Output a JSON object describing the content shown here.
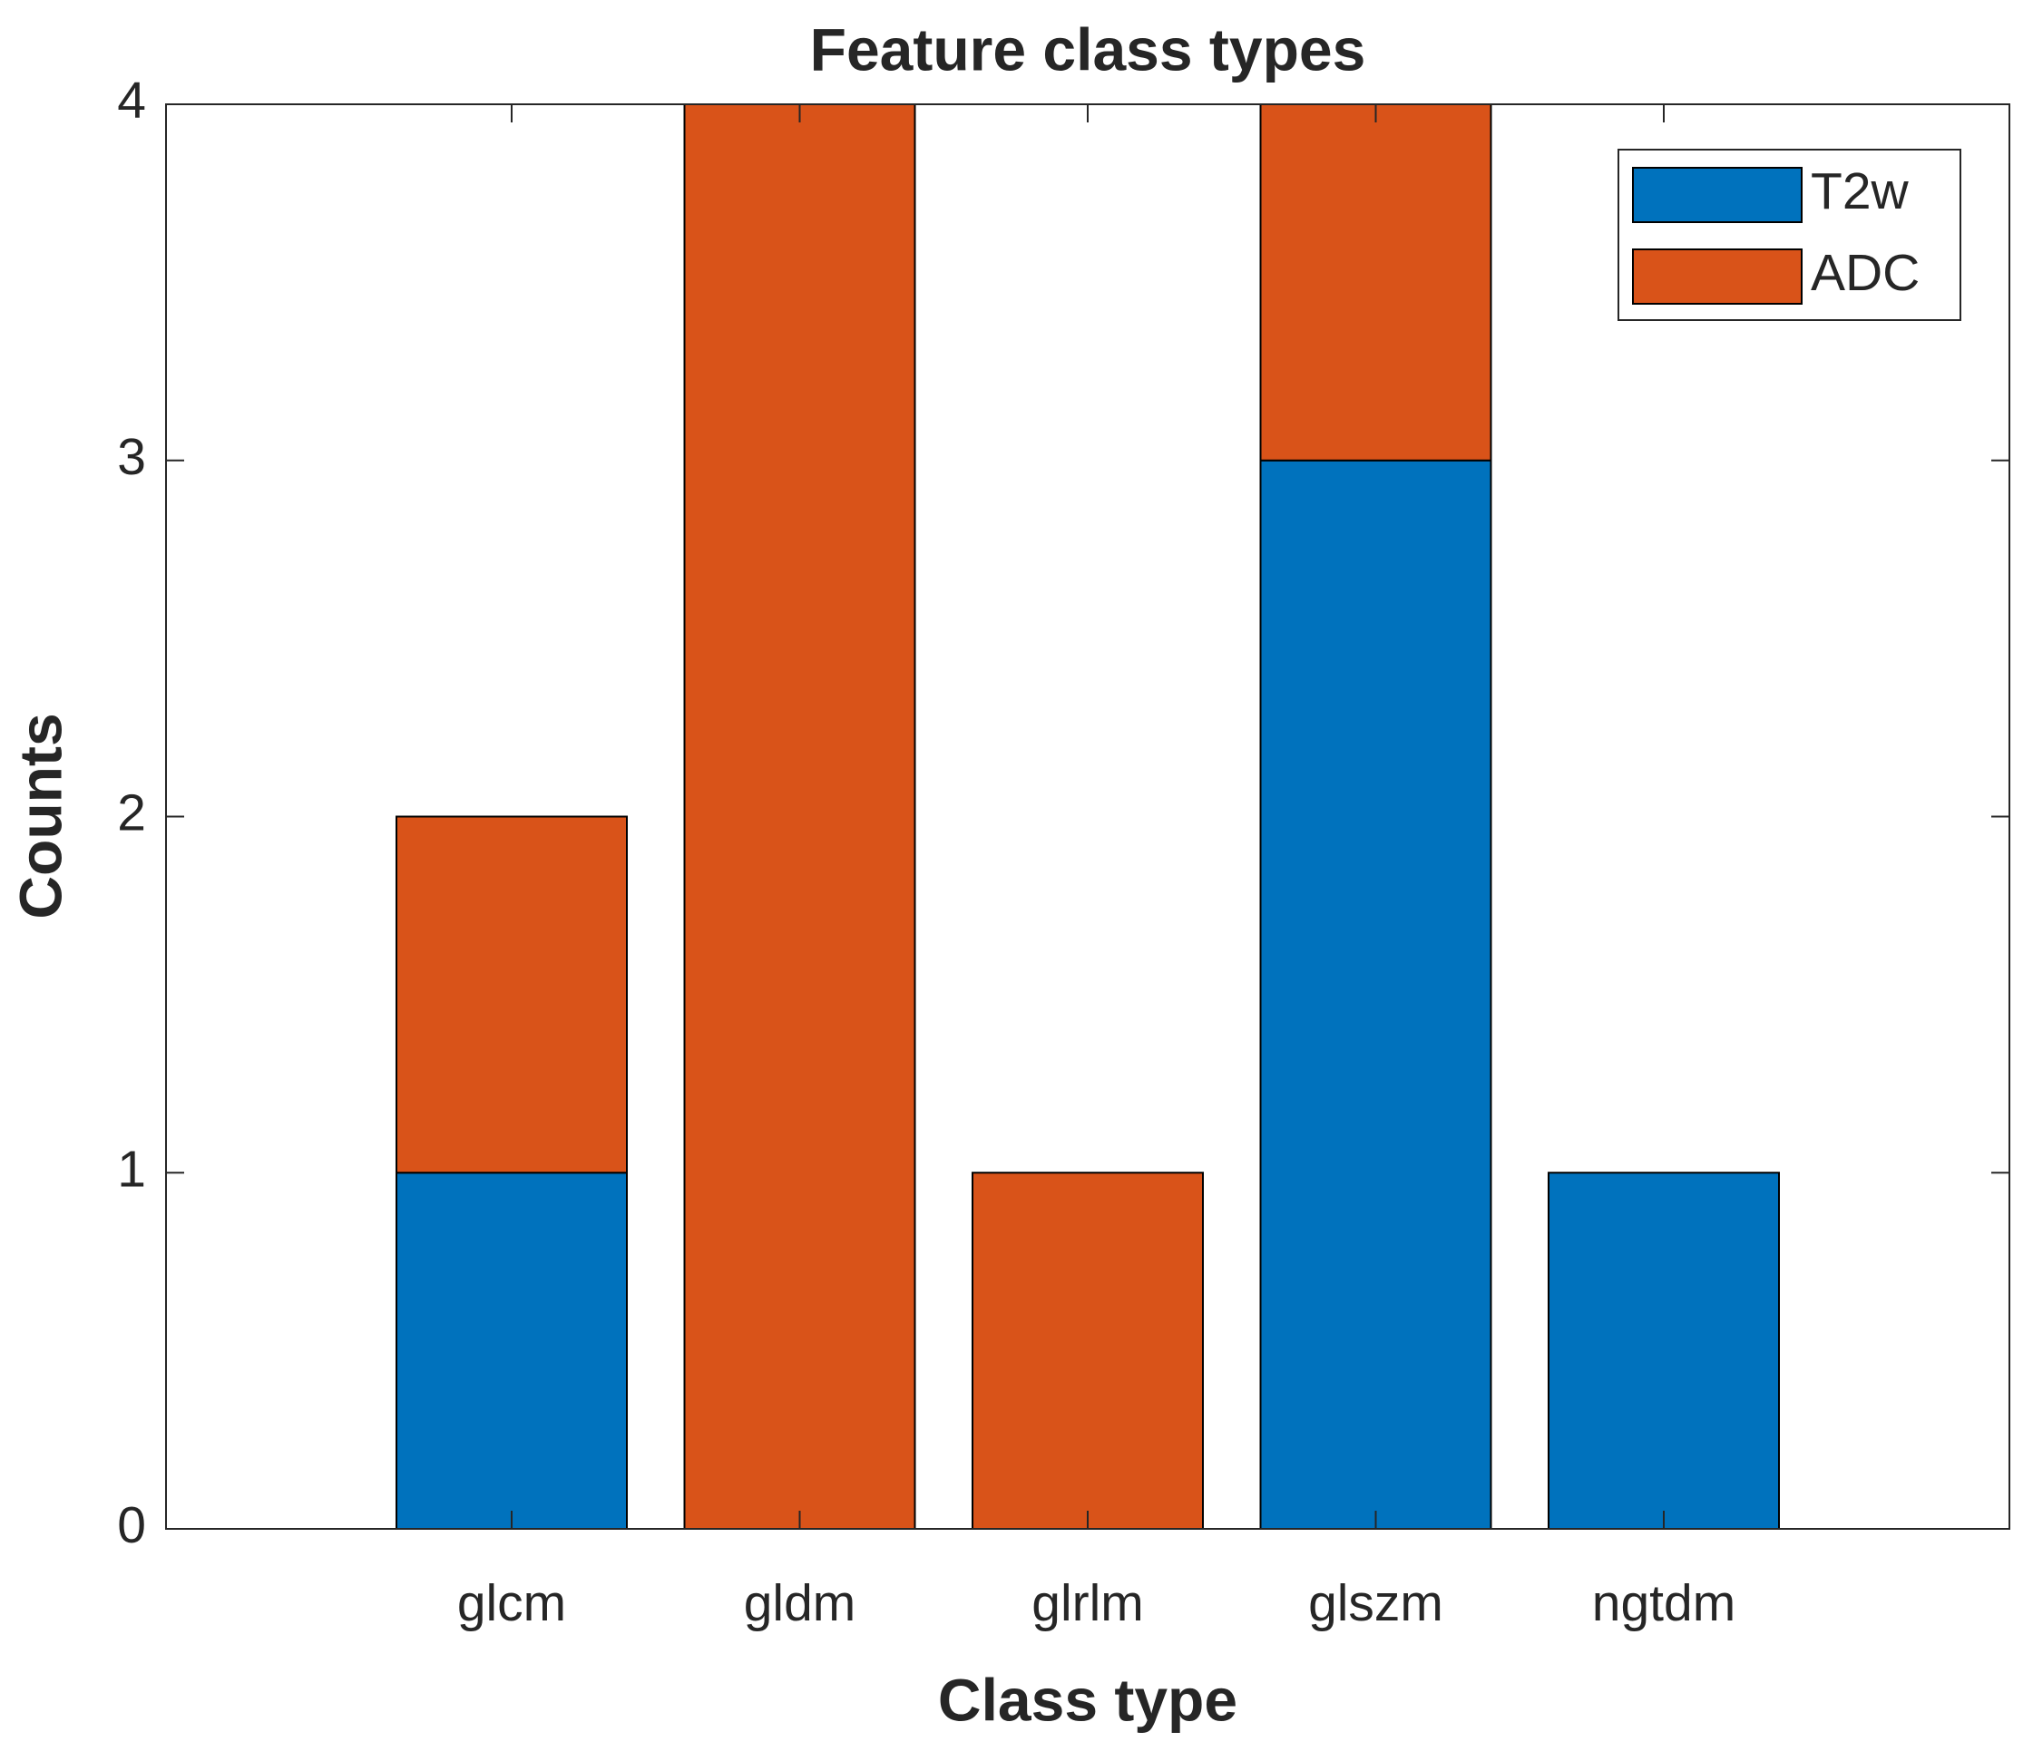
{
  "chart_data": {
    "type": "stacked_bar",
    "title": "Feature class types",
    "x_label": "Class type",
    "y_label": "Counts",
    "categories": [
      "glcm",
      "gldm",
      "glrlm",
      "glszm",
      "ngtdm"
    ],
    "series": [
      {
        "name": "T2w",
        "color": "#0072bd",
        "values": [
          1,
          0,
          0,
          3,
          1
        ]
      },
      {
        "name": "ADC",
        "color": "#d95319",
        "values": [
          1,
          4,
          1,
          1,
          0
        ]
      }
    ],
    "ylim": [
      0,
      4
    ],
    "yticks": [
      0,
      1,
      2,
      3,
      4
    ],
    "grid": false,
    "legend": "upper-right"
  }
}
